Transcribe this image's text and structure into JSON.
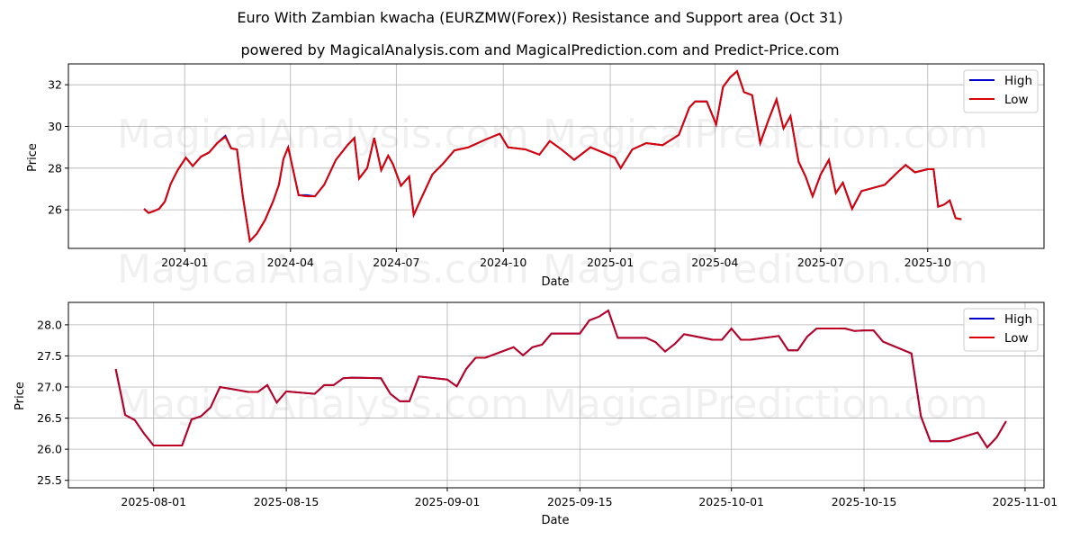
{
  "header": {
    "title": "Euro With Zambian kwacha (EURZMW(Forex)) Resistance and Support area (Oct 31)",
    "subtitle": "powered by MagicalAnalysis.com and MagicalPrediction.com and Predict-Price.com"
  },
  "watermarks": [
    "MagicalAnalysis.com",
    "MagicalPrediction.com"
  ],
  "colors": {
    "high": "#0000cc",
    "low": "#dd0000",
    "grid": "#b0b0b0"
  },
  "chart_data": [
    {
      "type": "line",
      "title": "Euro With Zambian kwacha (EURZMW(Forex)) Resistance and Support area (Oct 31)",
      "xlabel": "Date",
      "ylabel": "Price",
      "ylim": [
        24.15,
        33.0
      ],
      "grid": true,
      "legend": {
        "position": "upper right",
        "entries": [
          "High",
          "Low"
        ]
      },
      "x_ticks": [
        "2024-01",
        "2024-04",
        "2024-07",
        "2024-10",
        "2025-01",
        "2025-04",
        "2025-07",
        "2025-10"
      ],
      "y_ticks": [
        26,
        28,
        30,
        32
      ],
      "x": [
        "2023-11-27",
        "2023-12-01",
        "2023-12-06",
        "2023-12-10",
        "2023-12-15",
        "2023-12-20",
        "2023-12-26",
        "2024-01-02",
        "2024-01-08",
        "2024-01-15",
        "2024-01-22",
        "2024-01-29",
        "2024-02-05",
        "2024-02-10",
        "2024-02-15",
        "2024-02-20",
        "2024-02-26",
        "2024-03-03",
        "2024-03-10",
        "2024-03-17",
        "2024-03-22",
        "2024-03-26",
        "2024-03-30",
        "2024-04-08",
        "2024-04-15",
        "2024-04-22",
        "2024-04-30",
        "2024-05-10",
        "2024-05-20",
        "2024-05-26",
        "2024-05-30",
        "2024-06-06",
        "2024-06-12",
        "2024-06-18",
        "2024-06-24",
        "2024-06-28",
        "2024-07-05",
        "2024-07-12",
        "2024-07-16",
        "2024-07-22",
        "2024-08-01",
        "2024-08-10",
        "2024-08-20",
        "2024-09-01",
        "2024-09-15",
        "2024-09-28",
        "2024-10-05",
        "2024-10-20",
        "2024-11-01",
        "2024-11-10",
        "2024-11-20",
        "2024-12-01",
        "2024-12-15",
        "2024-12-28",
        "2025-01-05",
        "2025-01-10",
        "2025-01-20",
        "2025-02-01",
        "2025-02-15",
        "2025-03-01",
        "2025-03-10",
        "2025-03-15",
        "2025-03-25",
        "2025-04-02",
        "2025-04-08",
        "2025-04-14",
        "2025-04-20",
        "2025-04-26",
        "2025-05-03",
        "2025-05-10",
        "2025-05-17",
        "2025-05-24",
        "2025-05-30",
        "2025-06-05",
        "2025-06-12",
        "2025-06-18",
        "2025-06-24",
        "2025-07-01",
        "2025-07-08",
        "2025-07-14",
        "2025-07-20",
        "2025-07-28",
        "2025-08-05",
        "2025-08-15",
        "2025-08-25",
        "2025-09-05",
        "2025-09-12",
        "2025-09-20",
        "2025-10-01",
        "2025-10-06",
        "2025-10-10",
        "2025-10-15",
        "2025-10-20",
        "2025-10-25",
        "2025-10-30"
      ],
      "series": [
        {
          "name": "High",
          "color": "#0000cc",
          "values": [
            26.05,
            25.85,
            25.95,
            26.05,
            26.4,
            27.25,
            27.9,
            28.5,
            28.1,
            28.55,
            28.75,
            29.2,
            29.55,
            28.95,
            28.9,
            26.65,
            24.5,
            24.85,
            25.5,
            26.4,
            27.2,
            28.45,
            29.0,
            26.7,
            26.7,
            26.65,
            27.2,
            28.4,
            29.1,
            29.45,
            27.5,
            28.0,
            29.45,
            27.9,
            28.6,
            28.2,
            27.15,
            27.6,
            25.75,
            26.5,
            27.7,
            28.2,
            28.85,
            29.0,
            29.35,
            29.65,
            29.0,
            28.9,
            28.65,
            29.3,
            28.9,
            28.4,
            29.0,
            28.7,
            28.5,
            28.0,
            28.9,
            29.2,
            29.1,
            29.6,
            30.9,
            31.2,
            31.2,
            30.1,
            31.9,
            32.35,
            32.65,
            31.65,
            31.5,
            29.2,
            30.3,
            31.3,
            29.9,
            30.5,
            28.3,
            27.6,
            26.65,
            27.7,
            28.4,
            26.8,
            27.3,
            26.05,
            26.9,
            27.05,
            27.2,
            27.8,
            28.15,
            27.8,
            27.95,
            27.95,
            26.15,
            26.25,
            26.45,
            25.6,
            25.55
          ]
        },
        {
          "name": "Low",
          "color": "#dd0000",
          "values": [
            26.05,
            25.85,
            25.95,
            26.05,
            26.4,
            27.25,
            27.9,
            28.5,
            28.1,
            28.55,
            28.75,
            29.2,
            29.5,
            28.95,
            28.9,
            26.65,
            24.5,
            24.85,
            25.5,
            26.4,
            27.2,
            28.45,
            29.0,
            26.7,
            26.65,
            26.65,
            27.2,
            28.4,
            29.1,
            29.45,
            27.5,
            28.0,
            29.45,
            27.9,
            28.6,
            28.2,
            27.15,
            27.6,
            25.75,
            26.5,
            27.7,
            28.2,
            28.85,
            29.0,
            29.35,
            29.65,
            29.0,
            28.9,
            28.65,
            29.3,
            28.9,
            28.4,
            29.0,
            28.7,
            28.5,
            28.0,
            28.9,
            29.2,
            29.1,
            29.6,
            30.9,
            31.2,
            31.2,
            30.1,
            31.9,
            32.35,
            32.65,
            31.65,
            31.5,
            29.2,
            30.3,
            31.3,
            29.9,
            30.5,
            28.3,
            27.6,
            26.65,
            27.7,
            28.4,
            26.8,
            27.3,
            26.05,
            26.9,
            27.05,
            27.2,
            27.8,
            28.15,
            27.8,
            27.95,
            27.95,
            26.15,
            26.25,
            26.45,
            25.6,
            25.55
          ]
        }
      ]
    },
    {
      "type": "line",
      "title": "",
      "xlabel": "Date",
      "ylabel": "Price",
      "ylim": [
        25.38,
        28.36
      ],
      "grid": true,
      "legend": {
        "position": "upper right",
        "entries": [
          "High",
          "Low"
        ]
      },
      "x_ticks": [
        "2025-08-01",
        "2025-08-15",
        "2025-09-01",
        "2025-09-15",
        "2025-10-01",
        "2025-10-15",
        "2025-11-01"
      ],
      "y_ticks": [
        25.5,
        26.0,
        26.5,
        27.0,
        27.5,
        28.0
      ],
      "x": [
        "2025-07-28",
        "2025-07-29",
        "2025-07-30",
        "2025-07-31",
        "2025-08-01",
        "2025-08-04",
        "2025-08-05",
        "2025-08-06",
        "2025-08-07",
        "2025-08-08",
        "2025-08-11",
        "2025-08-12",
        "2025-08-13",
        "2025-08-14",
        "2025-08-15",
        "2025-08-18",
        "2025-08-19",
        "2025-08-20",
        "2025-08-21",
        "2025-08-22",
        "2025-08-25",
        "2025-08-26",
        "2025-08-27",
        "2025-08-28",
        "2025-08-29",
        "2025-09-01",
        "2025-09-02",
        "2025-09-03",
        "2025-09-04",
        "2025-09-05",
        "2025-09-08",
        "2025-09-09",
        "2025-09-10",
        "2025-09-11",
        "2025-09-12",
        "2025-09-15",
        "2025-09-16",
        "2025-09-17",
        "2025-09-18",
        "2025-09-19",
        "2025-09-22",
        "2025-09-23",
        "2025-09-24",
        "2025-09-25",
        "2025-09-26",
        "2025-09-29",
        "2025-09-30",
        "2025-10-01",
        "2025-10-02",
        "2025-10-03",
        "2025-10-06",
        "2025-10-07",
        "2025-10-08",
        "2025-10-09",
        "2025-10-10",
        "2025-10-13",
        "2025-10-14",
        "2025-10-15",
        "2025-10-16",
        "2025-10-17",
        "2025-10-20",
        "2025-10-21",
        "2025-10-22",
        "2025-10-23",
        "2025-10-24",
        "2025-10-27",
        "2025-10-28",
        "2025-10-29",
        "2025-10-30"
      ],
      "series": [
        {
          "name": "High",
          "color": "#0000cc",
          "values": [
            27.29,
            26.55,
            26.47,
            26.25,
            26.06,
            26.06,
            26.48,
            26.53,
            26.67,
            27.0,
            26.92,
            26.92,
            27.03,
            26.75,
            26.93,
            26.89,
            27.03,
            27.03,
            27.14,
            27.15,
            27.14,
            26.89,
            26.77,
            26.77,
            27.17,
            27.12,
            27.01,
            27.29,
            27.47,
            27.47,
            27.64,
            27.51,
            27.64,
            27.68,
            27.86,
            27.86,
            28.07,
            28.13,
            28.23,
            27.79,
            27.79,
            27.72,
            27.57,
            27.69,
            27.85,
            27.76,
            27.76,
            27.94,
            27.76,
            27.76,
            27.82,
            27.59,
            27.59,
            27.81,
            27.94,
            27.94,
            27.9,
            27.91,
            27.91,
            27.73,
            27.54,
            26.53,
            26.13,
            26.13,
            26.13,
            26.27,
            26.03,
            26.19,
            26.45
          ]
        },
        {
          "name": "Low",
          "color": "#dd0000",
          "values": [
            27.29,
            26.55,
            26.47,
            26.25,
            26.06,
            26.06,
            26.48,
            26.53,
            26.67,
            27.0,
            26.92,
            26.92,
            27.03,
            26.75,
            26.93,
            26.89,
            27.03,
            27.03,
            27.14,
            27.15,
            27.14,
            26.89,
            26.77,
            26.77,
            27.17,
            27.12,
            27.01,
            27.29,
            27.47,
            27.47,
            27.64,
            27.51,
            27.64,
            27.68,
            27.86,
            27.86,
            28.07,
            28.13,
            28.23,
            27.79,
            27.79,
            27.72,
            27.57,
            27.69,
            27.85,
            27.76,
            27.76,
            27.94,
            27.76,
            27.76,
            27.82,
            27.59,
            27.59,
            27.81,
            27.94,
            27.94,
            27.9,
            27.91,
            27.91,
            27.73,
            27.54,
            26.53,
            26.13,
            26.13,
            26.13,
            26.27,
            26.03,
            26.19,
            26.45
          ]
        }
      ]
    }
  ]
}
